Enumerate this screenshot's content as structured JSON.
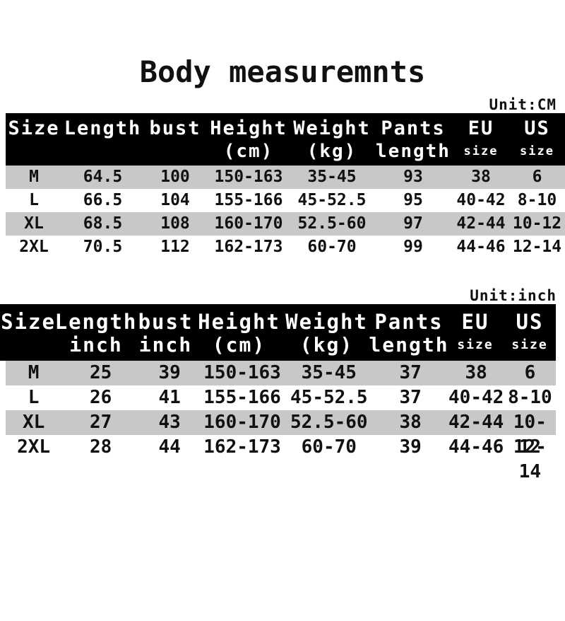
{
  "page": {
    "title": "Body measuremnts"
  },
  "colors": {
    "background": "#ffffff",
    "header_bg": "#000000",
    "header_text": "#ffffff",
    "row_stripe": "#c8c8c8",
    "text": "#111111"
  },
  "chart_data": [
    {
      "type": "table",
      "unit_label": "Unit:CM",
      "columns": [
        {
          "label": "Size",
          "sub": ""
        },
        {
          "label": "Length",
          "sub": ""
        },
        {
          "label": "bust",
          "sub": ""
        },
        {
          "label": "Height",
          "sub": "(cm)"
        },
        {
          "label": "Weight",
          "sub": "(kg)"
        },
        {
          "label": "Pants",
          "sub": "length"
        },
        {
          "label": "EU",
          "sub": "size"
        },
        {
          "label": "US",
          "sub": "size"
        }
      ],
      "rows": [
        [
          "M",
          "64.5",
          "100",
          "150-163",
          "35-45",
          "93",
          "38",
          "6"
        ],
        [
          "L",
          "66.5",
          "104",
          "155-166",
          "45-52.5",
          "95",
          "40-42",
          "8-10"
        ],
        [
          "XL",
          "68.5",
          "108",
          "160-170",
          "52.5-60",
          "97",
          "42-44",
          "10-12"
        ],
        [
          "2XL",
          "70.5",
          "112",
          "162-173",
          "60-70",
          "99",
          "44-46",
          "12-14"
        ]
      ]
    },
    {
      "type": "table",
      "unit_label": "Unit:inch",
      "columns": [
        {
          "label": "Size",
          "sub": ""
        },
        {
          "label": "Length",
          "sub": "inch"
        },
        {
          "label": "bust",
          "sub": "inch"
        },
        {
          "label": "Height",
          "sub": "(cm)"
        },
        {
          "label": "Weight",
          "sub": "(kg)"
        },
        {
          "label": "Pants",
          "sub": "length"
        },
        {
          "label": "EU",
          "sub": "size"
        },
        {
          "label": "US",
          "sub": "size"
        }
      ],
      "rows": [
        [
          "M",
          "25",
          "39",
          "150-163",
          "35-45",
          "37",
          "38",
          "6"
        ],
        [
          "L",
          "26",
          "41",
          "155-166",
          "45-52.5",
          "37",
          "40-42",
          "8-10"
        ],
        [
          "XL",
          "27",
          "43",
          "160-170",
          "52.5-60",
          "38",
          "42-44",
          "10-12"
        ],
        [
          "2XL",
          "28",
          "44",
          "162-173",
          "60-70",
          "39",
          "44-46",
          "12-14"
        ]
      ]
    }
  ]
}
